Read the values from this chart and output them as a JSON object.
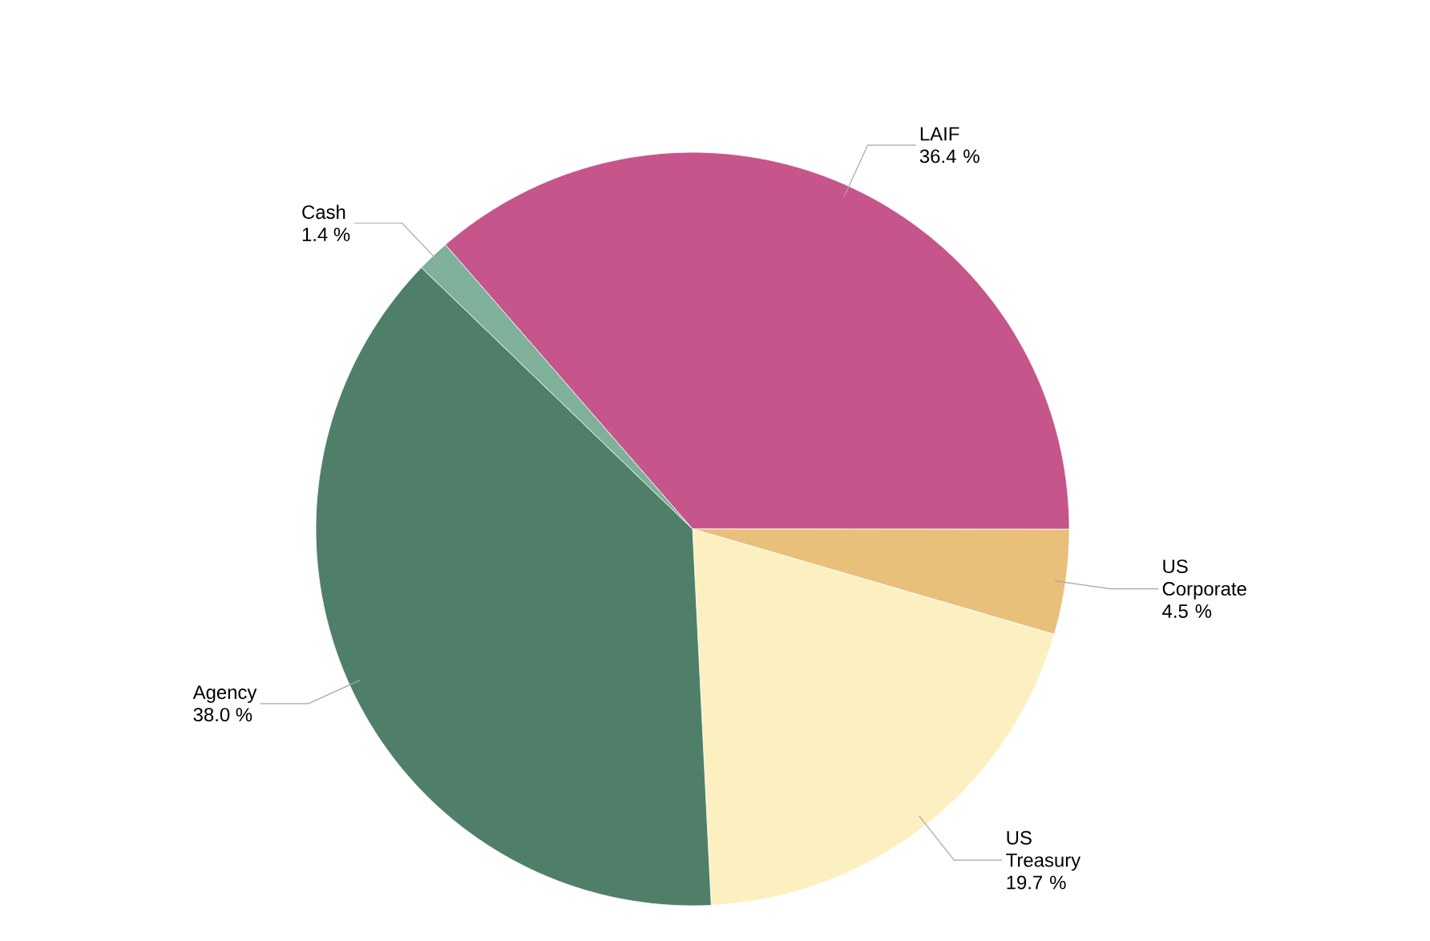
{
  "chart_data": {
    "type": "pie",
    "categories": [
      "LAIF",
      "US Corporate",
      "US Treasury",
      "Agency",
      "Cash"
    ],
    "values": [
      36.4,
      4.5,
      19.7,
      38.0,
      1.4
    ],
    "value_labels": [
      "36.4 %",
      "4.5 %",
      "19.7 %",
      "38.0 %",
      "1.4 %"
    ],
    "colors": [
      "#c5558a",
      "#e8c07a",
      "#fdf0c0",
      "#4f7f68",
      "#7fb09a"
    ]
  }
}
